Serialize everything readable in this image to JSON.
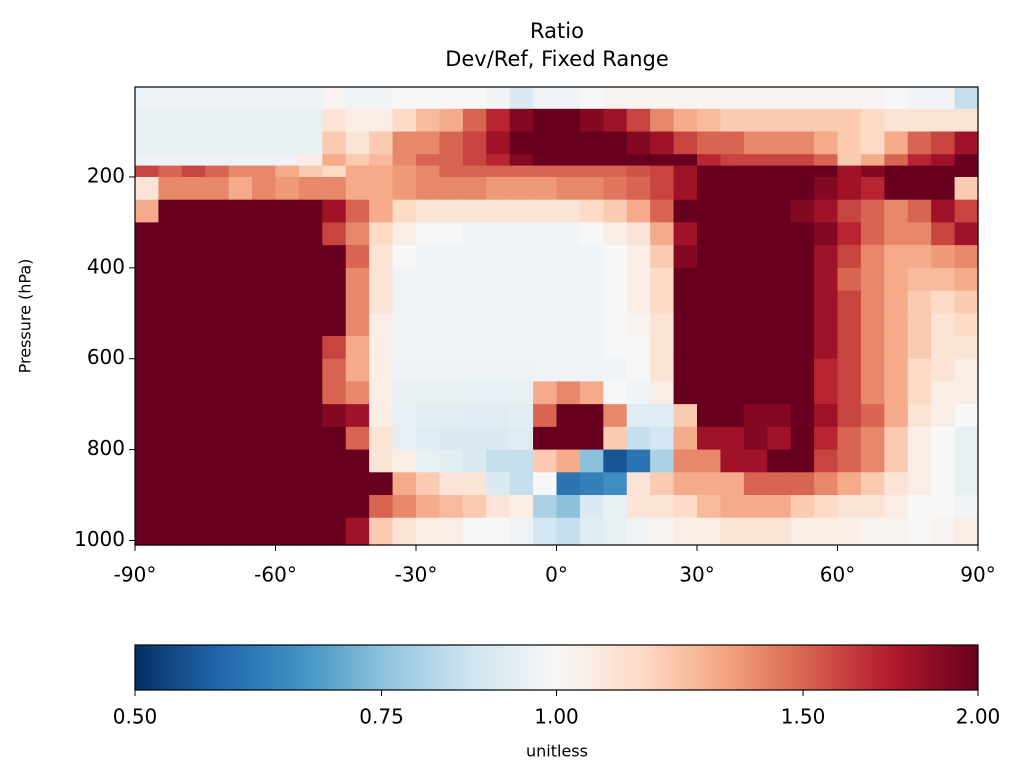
{
  "chart_data": {
    "type": "heatmap",
    "title": "Ratio",
    "subtitle": "Dev/Ref, Fixed Range",
    "y_label": "Pressure (hPa)",
    "xlim": [
      -90,
      90
    ],
    "xticks": [
      {
        "value": -90,
        "label": "-90°"
      },
      {
        "value": -60,
        "label": "-60°"
      },
      {
        "value": -30,
        "label": "-30°"
      },
      {
        "value": 0,
        "label": "0°"
      },
      {
        "value": 30,
        "label": "30°"
      },
      {
        "value": 60,
        "label": "60°"
      },
      {
        "value": 90,
        "label": "90°"
      }
    ],
    "ylim": [
      1010,
      2
    ],
    "yticks": [
      200,
      400,
      600,
      800,
      1000
    ],
    "xbins": [
      -90,
      -85,
      -80,
      -75,
      -70,
      -65,
      -60,
      -55,
      -50,
      -45,
      -40,
      -35,
      -30,
      -25,
      -20,
      -15,
      -10,
      -5,
      0,
      5,
      10,
      15,
      20,
      25,
      30,
      35,
      40,
      45,
      50,
      55,
      60,
      65,
      70,
      75,
      80,
      85,
      90
    ],
    "ybins": [
      2,
      50,
      100,
      150,
      175,
      200,
      250,
      300,
      350,
      400,
      450,
      500,
      550,
      600,
      650,
      700,
      750,
      800,
      850,
      900,
      950,
      1010
    ],
    "colormap": [
      "#053061",
      "#2166ac",
      "#4393c3",
      "#92c5de",
      "#d1e5f0",
      "#f7f7f7",
      "#fddbc7",
      "#f4a582",
      "#d6604d",
      "#b2182b",
      "#67001f"
    ],
    "colorbar": {
      "label": "unitless",
      "lim": [
        0.5,
        2
      ],
      "scale": "log",
      "ticks": [
        {
          "value": 0.5,
          "label": "0.50"
        },
        {
          "value": 0.75,
          "label": "0.75"
        },
        {
          "value": 1,
          "label": "1.00"
        },
        {
          "value": 1.5,
          "label": "1.50"
        },
        {
          "value": 2,
          "label": "2.00"
        }
      ]
    },
    "values": [
      [
        0.96,
        0.96,
        0.96,
        0.96,
        0.96,
        0.96,
        0.96,
        0.96,
        1.02,
        0.98,
        0.98,
        1,
        1,
        1,
        1,
        0.98,
        0.9,
        0.97,
        0.97,
        1,
        1.02,
        1.02,
        1.02,
        1.02,
        1.02,
        1.02,
        1.02,
        1.02,
        1.02,
        1.02,
        1.02,
        1.02,
        1.0,
        0.98,
        0.98,
        0.85
      ],
      [
        0.95,
        0.95,
        0.95,
        0.95,
        0.95,
        0.95,
        0.95,
        0.95,
        1.1,
        1.05,
        1.05,
        1.15,
        1.25,
        1.3,
        1.5,
        1.7,
        1.9,
        2,
        2,
        1.9,
        1.8,
        1.6,
        1.4,
        1.3,
        1.25,
        1.2,
        1.2,
        1.2,
        1.2,
        1.2,
        1.2,
        1.15,
        1.1,
        1.1,
        1.1,
        1.1
      ],
      [
        0.95,
        0.95,
        0.95,
        0.95,
        0.95,
        0.95,
        0.95,
        0.95,
        1.2,
        1.1,
        1.2,
        1.4,
        1.4,
        1.5,
        1.6,
        1.8,
        2,
        2,
        2,
        2,
        2,
        1.9,
        1.8,
        1.6,
        1.5,
        1.5,
        1.4,
        1.4,
        1.4,
        1.3,
        1.2,
        1.15,
        1.3,
        1.5,
        1.6,
        1.8
      ],
      [
        0.96,
        0.96,
        0.96,
        0.96,
        0.96,
        0.96,
        0.97,
        1.05,
        1.3,
        1.2,
        1.25,
        1.4,
        1.5,
        1.5,
        1.6,
        1.7,
        1.9,
        2,
        2,
        2,
        2,
        2,
        2,
        2,
        1.7,
        1.6,
        1.6,
        1.6,
        1.6,
        1.5,
        1.2,
        1.3,
        1.5,
        1.7,
        1.8,
        2
      ],
      [
        1.6,
        1.5,
        1.6,
        1.5,
        1.4,
        1.4,
        1.3,
        1.2,
        1.15,
        1.3,
        1.3,
        1.35,
        1.4,
        1.5,
        1.5,
        1.5,
        1.5,
        1.5,
        1.5,
        1.5,
        1.5,
        1.55,
        1.6,
        1.8,
        2,
        2,
        2,
        2,
        2,
        2,
        1.8,
        1.9,
        2,
        2,
        2,
        2
      ],
      [
        1.1,
        1.4,
        1.4,
        1.4,
        1.3,
        1.4,
        1.35,
        1.4,
        1.4,
        1.3,
        1.3,
        1.35,
        1.4,
        1.4,
        1.4,
        1.35,
        1.35,
        1.35,
        1.4,
        1.4,
        1.45,
        1.5,
        1.6,
        1.8,
        2,
        2,
        2,
        2,
        2,
        1.9,
        1.8,
        1.7,
        2,
        2,
        2,
        1.2
      ],
      [
        1.3,
        2,
        2,
        2,
        2,
        2,
        2,
        2,
        1.8,
        1.5,
        1.3,
        1.15,
        1.1,
        1.1,
        1.1,
        1.1,
        1.1,
        1.1,
        1.1,
        1.15,
        1.2,
        1.3,
        1.5,
        2,
        2,
        2,
        2,
        2,
        1.9,
        1.8,
        1.6,
        1.5,
        1.4,
        1.5,
        1.8,
        1.6
      ],
      [
        2,
        2,
        2,
        2,
        2,
        2,
        2,
        2,
        1.6,
        1.4,
        1.15,
        1.05,
        1.0,
        1.0,
        0.98,
        0.98,
        0.98,
        0.98,
        0.98,
        1.0,
        1.05,
        1.1,
        1.3,
        1.8,
        2,
        2,
        2,
        2,
        2,
        1.9,
        1.7,
        1.5,
        1.4,
        1.4,
        1.6,
        1.8
      ],
      [
        2,
        2,
        2,
        2,
        2,
        2,
        2,
        2,
        2,
        1.5,
        1.1,
        1.0,
        0.98,
        0.98,
        0.97,
        0.97,
        0.97,
        0.97,
        0.97,
        0.98,
        1.0,
        1.05,
        1.2,
        1.9,
        2,
        2,
        2,
        2,
        2,
        1.8,
        1.6,
        1.4,
        1.3,
        1.3,
        1.35,
        1.4
      ],
      [
        2,
        2,
        2,
        2,
        2,
        2,
        2,
        2,
        2,
        1.4,
        1.1,
        0.97,
        0.97,
        0.97,
        0.97,
        0.97,
        0.97,
        0.97,
        0.98,
        0.98,
        1.0,
        1.05,
        1.15,
        2,
        2,
        2,
        2,
        2,
        2,
        1.8,
        1.5,
        1.4,
        1.3,
        1.25,
        1.25,
        1.3
      ],
      [
        2,
        2,
        2,
        2,
        2,
        2,
        2,
        2,
        2,
        1.4,
        1.1,
        0.97,
        0.97,
        0.97,
        0.97,
        0.97,
        0.97,
        0.97,
        0.98,
        0.98,
        1.0,
        1.05,
        1.15,
        2,
        2,
        2,
        2,
        2,
        2,
        1.8,
        1.6,
        1.4,
        1.3,
        1.2,
        1.15,
        1.2
      ],
      [
        2,
        2,
        2,
        2,
        2,
        2,
        2,
        2,
        2,
        1.4,
        1.05,
        0.97,
        0.97,
        0.97,
        0.97,
        0.97,
        0.97,
        0.97,
        0.98,
        0.98,
        1.0,
        1.02,
        1.1,
        2,
        2,
        2,
        2,
        2,
        2,
        1.8,
        1.6,
        1.4,
        1.3,
        1.2,
        1.1,
        1.15
      ],
      [
        2,
        2,
        2,
        2,
        2,
        2,
        2,
        2,
        1.6,
        1.3,
        1.05,
        0.97,
        0.97,
        0.97,
        0.97,
        0.97,
        0.97,
        0.97,
        0.98,
        0.98,
        1.0,
        1.0,
        1.1,
        2,
        2,
        2,
        2,
        2,
        2,
        1.8,
        1.6,
        1.4,
        1.3,
        1.2,
        1.1,
        1.1
      ],
      [
        2,
        2,
        2,
        2,
        2,
        2,
        2,
        2,
        1.5,
        1.3,
        1.05,
        0.96,
        0.96,
        0.96,
        0.96,
        0.96,
        0.96,
        0.97,
        0.97,
        0.97,
        0.98,
        1.0,
        1.1,
        2,
        2,
        2,
        2,
        2,
        2,
        1.7,
        1.6,
        1.4,
        1.3,
        1.15,
        1.1,
        1.05
      ],
      [
        2,
        2,
        2,
        2,
        2,
        2,
        2,
        2,
        1.5,
        1.4,
        1.05,
        0.95,
        0.95,
        0.95,
        0.94,
        0.94,
        0.95,
        1.3,
        1.4,
        1.3,
        1.0,
        0.97,
        1.05,
        2,
        2,
        2,
        2,
        2,
        2,
        1.7,
        1.6,
        1.4,
        1.3,
        1.15,
        1.05,
        1.05
      ],
      [
        2,
        2,
        2,
        2,
        2,
        2,
        2,
        2,
        1.9,
        1.8,
        1.05,
        0.94,
        0.93,
        0.93,
        0.92,
        0.92,
        0.93,
        1.5,
        2,
        2,
        1.4,
        0.92,
        0.92,
        1.2,
        2,
        2,
        1.9,
        1.9,
        2,
        1.8,
        1.6,
        1.5,
        1.3,
        1.1,
        1.05,
        1.0
      ],
      [
        2,
        2,
        2,
        2,
        2,
        2,
        2,
        2,
        2,
        1.5,
        1.1,
        0.94,
        0.92,
        0.9,
        0.9,
        0.9,
        0.92,
        2,
        2,
        2,
        1.2,
        0.85,
        0.88,
        1.3,
        1.8,
        1.8,
        1.9,
        1.8,
        2,
        1.7,
        1.5,
        1.4,
        1.2,
        1.05,
        1.0,
        0.95
      ],
      [
        2,
        2,
        2,
        2,
        2,
        2,
        2,
        2,
        2,
        2,
        1.1,
        1.05,
        0.95,
        0.93,
        0.9,
        0.85,
        0.85,
        1.2,
        1.3,
        0.75,
        0.55,
        0.6,
        0.8,
        1.4,
        1.4,
        1.8,
        1.8,
        2,
        2,
        1.6,
        1.5,
        1.4,
        1.2,
        1.05,
        1.0,
        0.95
      ],
      [
        2,
        2,
        2,
        2,
        2,
        2,
        2,
        2,
        2,
        2,
        2,
        1.3,
        1.2,
        1.1,
        1.1,
        0.9,
        0.85,
        1.0,
        0.6,
        0.62,
        0.65,
        1.1,
        1.2,
        1.3,
        1.3,
        1.3,
        1.5,
        1.5,
        1.5,
        1.4,
        1.3,
        1.2,
        1.1,
        1.05,
        1.0,
        0.95
      ],
      [
        2,
        2,
        2,
        2,
        2,
        2,
        2,
        2,
        2,
        2,
        1.5,
        1.4,
        1.3,
        1.25,
        1.2,
        1.1,
        1.05,
        0.8,
        0.75,
        0.9,
        0.95,
        1.1,
        1.1,
        1.15,
        1.25,
        1.3,
        1.3,
        1.3,
        1.2,
        1.15,
        1.1,
        1.1,
        1.05,
        1.0,
        1.0,
        0.98
      ],
      [
        2,
        2,
        2,
        2,
        2,
        2,
        2,
        2,
        2,
        1.8,
        1.2,
        1.1,
        1.05,
        1.05,
        1.0,
        1.0,
        0.97,
        0.88,
        0.85,
        0.92,
        0.95,
        0.98,
        1.02,
        1.05,
        1.05,
        1.1,
        1.1,
        1.1,
        1.05,
        1.05,
        1.05,
        1.02,
        1.02,
        1.0,
        1.02,
        1.05
      ]
    ]
  }
}
